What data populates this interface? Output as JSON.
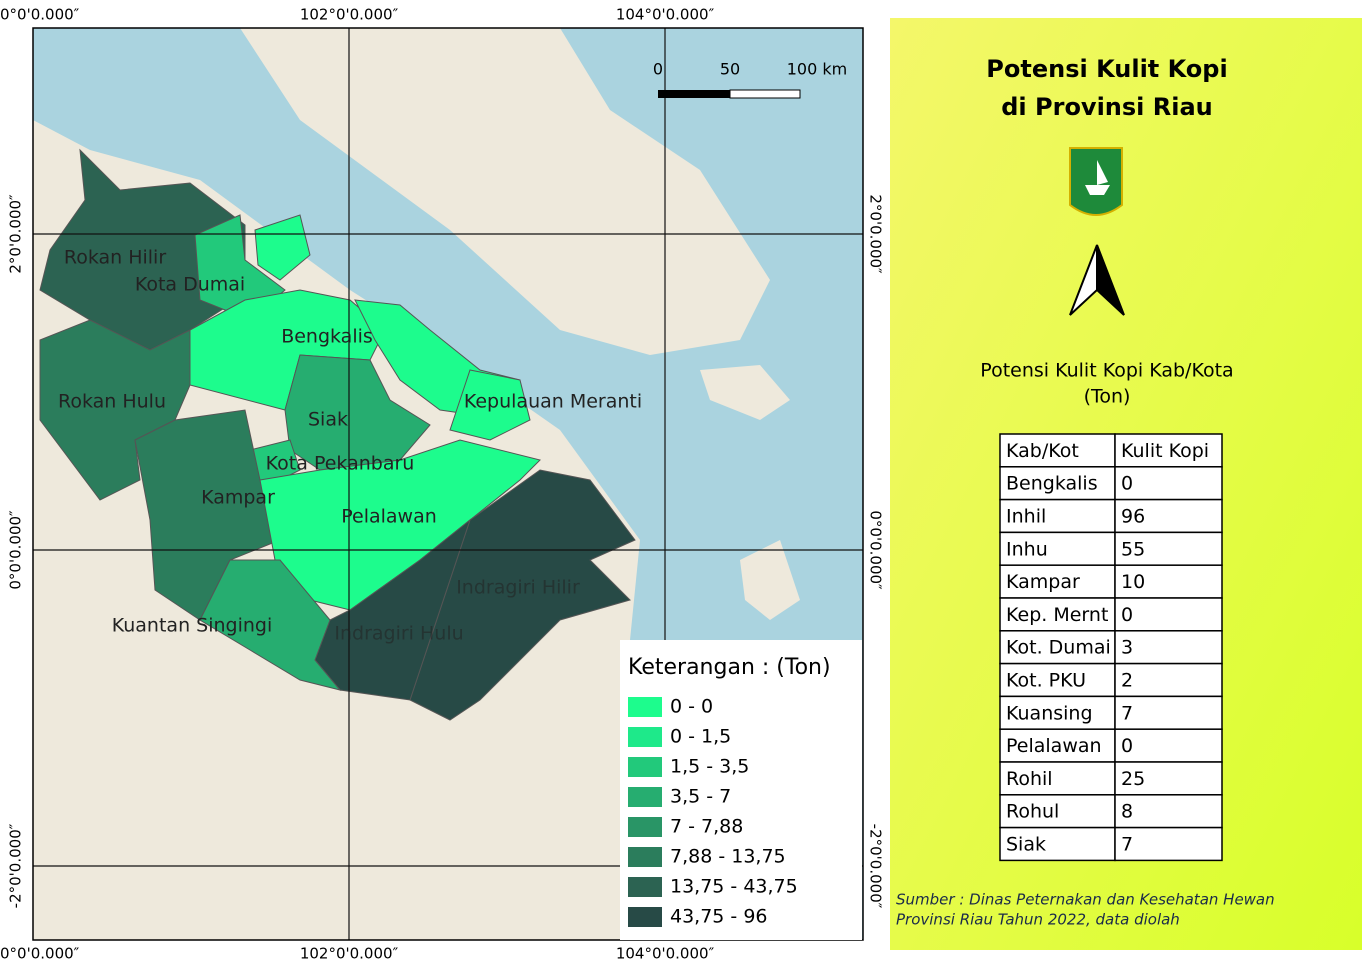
{
  "title": [
    "Potensi Kulit Kopi",
    "di Provinsi Riau"
  ],
  "coordinates": {
    "top": [
      "0°0'0.000″",
      "102°0'0.000″",
      "104°0'0.000″"
    ],
    "bottom": [
      "0°0'0.000″",
      "102°0'0.000″",
      "104°0'0.000″"
    ],
    "left": [
      "2°0'0.000″",
      "0°0'0.000″",
      "-2°0'0.000″"
    ],
    "right": [
      "2°0'0.000″",
      "0°0'0.000″",
      "-2°0'0.000″"
    ]
  },
  "scale_bar": [
    "0",
    "50",
    "100 km"
  ],
  "region_labels": [
    "Rokan Hilir",
    "Kota Dumai",
    "Bengkalis",
    "Rokan Hulu",
    "Siak",
    "Kepulauan Meranti",
    "Kota Pekanbaru",
    "Kampar",
    "Pelalawan",
    "Indragiri Hilir",
    "Kuantan Singingi",
    "Indragiri Hulu"
  ],
  "legend": {
    "title": "Keterangan : (Ton)",
    "items": [
      {
        "label": "0 - 0",
        "color": "#1dfc8d"
      },
      {
        "label": "0 - 1,5",
        "color": "#1ee98a"
      },
      {
        "label": "1,5 - 3,5",
        "color": "#22c97b"
      },
      {
        "label": "3,5 - 7",
        "color": "#26ad70"
      },
      {
        "label": "7 - 7,88",
        "color": "#299566"
      },
      {
        "label": "7,88 - 13,75",
        "color": "#2b7d5c"
      },
      {
        "label": "13,75 - 43,75",
        "color": "#2c6352"
      },
      {
        "label": "43,75 - 96",
        "color": "#274a46"
      }
    ]
  },
  "table_title": [
    "Potensi Kulit Kopi Kab/Kota",
    "(Ton)"
  ],
  "table": {
    "header": [
      "Kab/Kot",
      "Kulit Kopi"
    ],
    "rows": [
      [
        "Bengkalis",
        0
      ],
      [
        "Inhil",
        96
      ],
      [
        "Inhu",
        55
      ],
      [
        "Kampar",
        10
      ],
      [
        "Kep. Mernt",
        0
      ],
      [
        "Kot. Dumai",
        3
      ],
      [
        "Kot. PKU",
        2
      ],
      [
        "Kuansing",
        7
      ],
      [
        "Pelalawan",
        0
      ],
      [
        "Rohil",
        25
      ],
      [
        "Rohul",
        8
      ],
      [
        "Siak",
        7
      ]
    ]
  },
  "source": [
    "Sumber : Dinas Peternakan dan Kesehatan Hewan",
    "Provinsi Riau Tahun 2022, data diolah"
  ]
}
